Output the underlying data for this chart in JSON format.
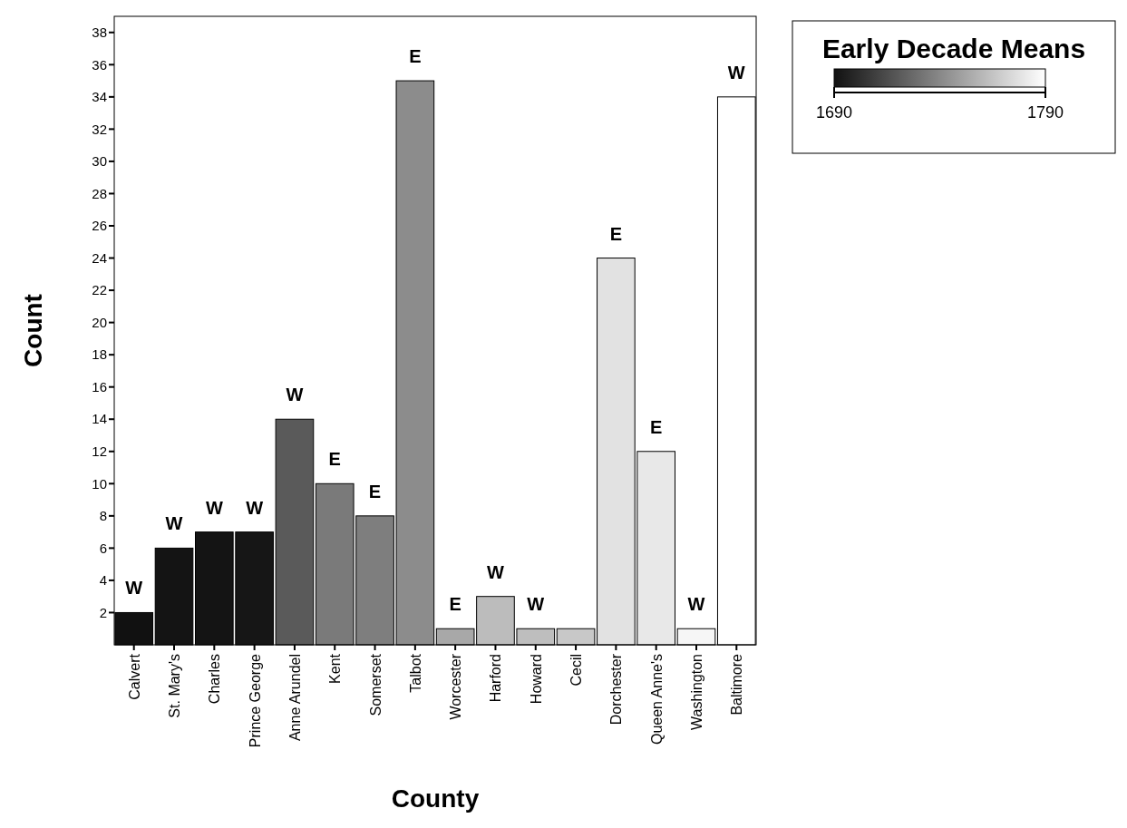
{
  "chart_data": {
    "type": "bar",
    "xlabel": "County",
    "ylabel": "Count",
    "categories": [
      "Calvert",
      "St. Mary's",
      "Charles",
      "Prince George",
      "Anne Arundel",
      "Kent",
      "Somerset",
      "Talbot",
      "Worcester",
      "Harford",
      "Howard",
      "Cecil",
      "Dorchester",
      "Queen Anne's",
      "Washington",
      "Baltimore"
    ],
    "values": [
      2,
      6,
      7,
      7,
      14,
      10,
      8,
      35,
      1,
      3,
      1,
      1,
      24,
      12,
      1,
      34
    ],
    "colors": [
      "#111111",
      "#141414",
      "#141414",
      "#161616",
      "#5a5a5a",
      "#7a7a7a",
      "#7e7e7e",
      "#8c8c8c",
      "#a8a8a8",
      "#bcbcbc",
      "#bebebe",
      "#c8c8c8",
      "#e2e2e2",
      "#e8e8e8",
      "#f6f6f6",
      "#ffffff"
    ],
    "ylim": [
      0,
      39
    ],
    "yticks": [
      2,
      4,
      6,
      8,
      10,
      12,
      14,
      16,
      18,
      20,
      22,
      24,
      26,
      28,
      30,
      32,
      34,
      36,
      38
    ],
    "clabel": "Early Decade Means",
    "clim": [
      1690,
      1790
    ],
    "cticks": [
      1690,
      1790
    ],
    "annotations": [
      {
        "text": "W",
        "x": "Calvert",
        "y": 2
      },
      {
        "text": "W",
        "x": "St. Mary's",
        "y": 6
      },
      {
        "text": "W",
        "x": "Charles",
        "y": 7
      },
      {
        "text": "W",
        "x": "Prince George",
        "y": 7
      },
      {
        "text": "W",
        "x": "Anne Arundel",
        "y": 14
      },
      {
        "text": "E",
        "x": "Kent",
        "y": 10
      },
      {
        "text": "E",
        "x": "Somerset",
        "y": 8
      },
      {
        "text": "E",
        "x": "Talbot",
        "y": 35
      },
      {
        "text": "E",
        "x": "Worcester",
        "y": 1
      },
      {
        "text": "W",
        "x": "Harford",
        "y": 3
      },
      {
        "text": "W",
        "x": "Howard",
        "y": 1
      },
      {
        "text": "E",
        "x": "Dorchester",
        "y": 24
      },
      {
        "text": "E",
        "x": "Queen Anne's",
        "y": 12
      },
      {
        "text": "W",
        "x": "Washington",
        "y": 1
      },
      {
        "text": "W",
        "x": "Baltimore",
        "y": 34
      }
    ],
    "grid": false
  }
}
